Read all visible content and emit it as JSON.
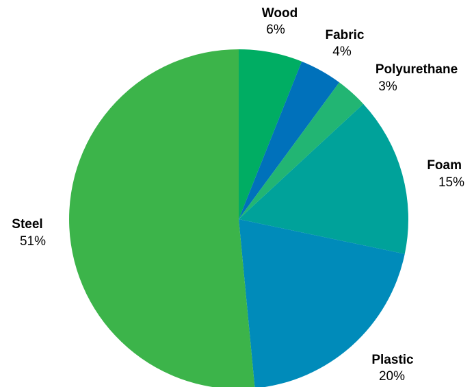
{
  "chart_data": {
    "type": "pie",
    "title": "",
    "start_angle_deg": 0,
    "direction": "clockwise",
    "slices": [
      {
        "label": "Wood",
        "value": 6,
        "value_label": "6%",
        "color": "#00ad63"
      },
      {
        "label": "Fabric",
        "value": 4,
        "value_label": "4%",
        "color": "#0071bb"
      },
      {
        "label": "Polyurethane",
        "value": 3,
        "value_label": "3%",
        "color": "#22b573"
      },
      {
        "label": "Foam",
        "value": 15,
        "value_label": "15%",
        "color": "#00a29a"
      },
      {
        "label": "Plastic",
        "value": 20,
        "value_label": "20%",
        "color": "#008bba"
      },
      {
        "label": "Steel",
        "value": 51,
        "value_label": "51%",
        "color": "#3cb44a"
      }
    ]
  }
}
